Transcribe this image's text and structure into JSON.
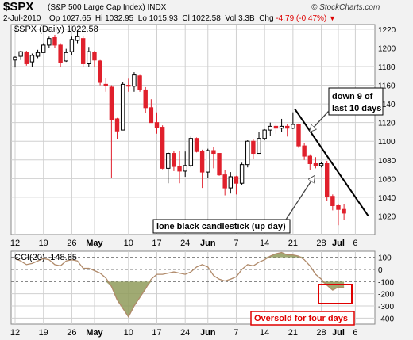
{
  "header": {
    "symbol": "$SPX",
    "name": "(S&P 500 Large Cap Index) INDX",
    "date": "2-Jul-2010",
    "open_label": "Op",
    "open": "1027.65",
    "high_label": "Hi",
    "high": "1032.95",
    "low_label": "Lo",
    "low": "1015.93",
    "close_label": "Cl",
    "close": "1022.58",
    "volume_label": "Vol",
    "volume": "3.3B",
    "change_label": "Chg",
    "change": "-4.79 (-0.47%)",
    "change_arrow": "▼",
    "brand": "© StockCharts.com"
  },
  "price_legend": "$SPX (Daily) 1022.58",
  "cci_legend": "CCI(20) -148.65",
  "annotations": {
    "down_text": [
      "down 9 of",
      "last 10 days"
    ],
    "lone_text": "lone black candlestick (up day)",
    "oversold_text": "Oversold for four days"
  },
  "colors": {
    "up": "#ffffff",
    "down": "#e0202c",
    "cci_line": "#b08a6a",
    "cci_fill": "#8f9b5a",
    "annotation_red": "#e00000",
    "grid": "#d0d0d0"
  },
  "chart_data": [
    {
      "type": "candlestick",
      "title": "$SPX (Daily) 1022.58",
      "ylim": [
        1000,
        1225
      ],
      "yticks": [
        1020,
        1040,
        1060,
        1080,
        1100,
        1120,
        1140,
        1160,
        1180,
        1200,
        1220
      ],
      "x_tick_labels": [
        "12",
        "19",
        "26",
        "May",
        "10",
        "17",
        "24",
        "Jun",
        "7",
        "14",
        "21",
        "28",
        "Jul",
        "6"
      ],
      "x_tick_index": [
        0,
        5,
        10,
        14,
        20,
        25,
        30,
        34,
        39,
        44,
        49,
        54,
        57,
        60
      ],
      "candles": [
        {
          "o": 1187,
          "h": 1191,
          "l": 1179,
          "c": 1190
        },
        {
          "o": 1191,
          "h": 1197,
          "l": 1187,
          "c": 1196
        },
        {
          "o": 1195,
          "h": 1197,
          "l": 1181,
          "c": 1183
        },
        {
          "o": 1185,
          "h": 1194,
          "l": 1180,
          "c": 1192
        },
        {
          "o": 1191,
          "h": 1198,
          "l": 1189,
          "c": 1195
        },
        {
          "o": 1195,
          "h": 1205,
          "l": 1195,
          "c": 1203
        },
        {
          "o": 1203,
          "h": 1212,
          "l": 1200,
          "c": 1210
        },
        {
          "o": 1211,
          "h": 1214,
          "l": 1200,
          "c": 1203
        },
        {
          "o": 1203,
          "h": 1205,
          "l": 1180,
          "c": 1184
        },
        {
          "o": 1186,
          "h": 1199,
          "l": 1185,
          "c": 1195
        },
        {
          "o": 1196,
          "h": 1212,
          "l": 1192,
          "c": 1209
        },
        {
          "o": 1208,
          "h": 1219,
          "l": 1205,
          "c": 1212
        },
        {
          "o": 1210,
          "h": 1213,
          "l": 1180,
          "c": 1183
        },
        {
          "o": 1183,
          "h": 1201,
          "l": 1180,
          "c": 1196
        },
        {
          "o": 1195,
          "h": 1197,
          "l": 1180,
          "c": 1187
        },
        {
          "o": 1186,
          "h": 1187,
          "l": 1160,
          "c": 1163
        },
        {
          "o": 1161,
          "h": 1168,
          "l": 1153,
          "c": 1160
        },
        {
          "o": 1158,
          "h": 1160,
          "l": 1061,
          "c": 1123
        },
        {
          "o": 1124,
          "h": 1125,
          "l": 1102,
          "c": 1111
        },
        {
          "o": 1112,
          "h": 1163,
          "l": 1112,
          "c": 1161
        },
        {
          "o": 1160,
          "h": 1167,
          "l": 1153,
          "c": 1159
        },
        {
          "o": 1159,
          "h": 1174,
          "l": 1153,
          "c": 1171
        },
        {
          "o": 1170,
          "h": 1171,
          "l": 1153,
          "c": 1155
        },
        {
          "o": 1155,
          "h": 1158,
          "l": 1130,
          "c": 1136
        },
        {
          "o": 1136,
          "h": 1145,
          "l": 1120,
          "c": 1120
        },
        {
          "o": 1120,
          "h": 1131,
          "l": 1108,
          "c": 1115
        },
        {
          "o": 1115,
          "h": 1117,
          "l": 1070,
          "c": 1071
        },
        {
          "o": 1071,
          "h": 1088,
          "l": 1055,
          "c": 1087
        },
        {
          "o": 1087,
          "h": 1090,
          "l": 1068,
          "c": 1073
        },
        {
          "o": 1073,
          "h": 1090,
          "l": 1055,
          "c": 1068
        },
        {
          "o": 1068,
          "h": 1089,
          "l": 1062,
          "c": 1074
        },
        {
          "o": 1074,
          "h": 1105,
          "l": 1072,
          "c": 1103
        },
        {
          "o": 1103,
          "h": 1104,
          "l": 1088,
          "c": 1089
        },
        {
          "o": 1089,
          "h": 1091,
          "l": 1050,
          "c": 1067
        },
        {
          "o": 1067,
          "h": 1092,
          "l": 1061,
          "c": 1090
        },
        {
          "o": 1090,
          "h": 1094,
          "l": 1071,
          "c": 1087
        },
        {
          "o": 1087,
          "h": 1087,
          "l": 1063,
          "c": 1064
        },
        {
          "o": 1064,
          "h": 1069,
          "l": 1042,
          "c": 1050
        },
        {
          "o": 1050,
          "h": 1067,
          "l": 1044,
          "c": 1062
        },
        {
          "o": 1062,
          "h": 1063,
          "l": 1043,
          "c": 1055
        },
        {
          "o": 1055,
          "h": 1077,
          "l": 1053,
          "c": 1075
        },
        {
          "o": 1075,
          "h": 1101,
          "l": 1072,
          "c": 1100
        },
        {
          "o": 1100,
          "h": 1102,
          "l": 1081,
          "c": 1087
        },
        {
          "o": 1087,
          "h": 1110,
          "l": 1087,
          "c": 1103
        },
        {
          "o": 1103,
          "h": 1113,
          "l": 1101,
          "c": 1112
        },
        {
          "o": 1112,
          "h": 1120,
          "l": 1106,
          "c": 1116
        },
        {
          "o": 1116,
          "h": 1119,
          "l": 1108,
          "c": 1114
        },
        {
          "o": 1114,
          "h": 1124,
          "l": 1110,
          "c": 1116
        },
        {
          "o": 1116,
          "h": 1118,
          "l": 1105,
          "c": 1114
        },
        {
          "o": 1114,
          "h": 1131,
          "l": 1113,
          "c": 1118
        },
        {
          "o": 1118,
          "h": 1119,
          "l": 1093,
          "c": 1095
        },
        {
          "o": 1095,
          "h": 1098,
          "l": 1080,
          "c": 1084
        },
        {
          "o": 1084,
          "h": 1086,
          "l": 1069,
          "c": 1076
        },
        {
          "o": 1076,
          "h": 1083,
          "l": 1071,
          "c": 1074
        },
        {
          "o": 1074,
          "h": 1078,
          "l": 1072,
          "c": 1076
        },
        {
          "o": 1076,
          "h": 1079,
          "l": 1036,
          "c": 1041
        },
        {
          "o": 1041,
          "h": 1043,
          "l": 1026,
          "c": 1031
        },
        {
          "o": 1031,
          "h": 1033,
          "l": 1010,
          "c": 1027
        },
        {
          "o": 1027,
          "h": 1033,
          "l": 1016,
          "c": 1023
        }
      ]
    },
    {
      "type": "area",
      "title": "CCI(20) -148.65",
      "ylim": [
        -450,
        150
      ],
      "yticks": [
        -400,
        -300,
        -200,
        -100,
        0,
        100
      ],
      "x_tick_labels": [
        "12",
        "19",
        "26",
        "May",
        "10",
        "17",
        "24",
        "Jun",
        "7",
        "14",
        "21",
        "28",
        "Jul",
        "6"
      ],
      "x_tick_index": [
        0,
        5,
        10,
        14,
        20,
        25,
        30,
        34,
        39,
        44,
        49,
        54,
        57,
        60
      ],
      "series": [
        {
          "values": [
            90,
            70,
            40,
            50,
            70,
            90,
            80,
            40,
            30,
            70,
            80,
            70,
            10,
            10,
            -10,
            -30,
            -70,
            -140,
            -250,
            -320,
            -390,
            -300,
            -230,
            -160,
            -80,
            -40,
            -40,
            -30,
            -20,
            -30,
            -40,
            -20,
            20,
            40,
            20,
            -50,
            -80,
            -95,
            -80,
            -60,
            0,
            40,
            30,
            60,
            80,
            110,
            130,
            140,
            120,
            120,
            110,
            80,
            30,
            -40,
            -80,
            -130,
            -170,
            -145,
            -149
          ]
        }
      ]
    }
  ]
}
